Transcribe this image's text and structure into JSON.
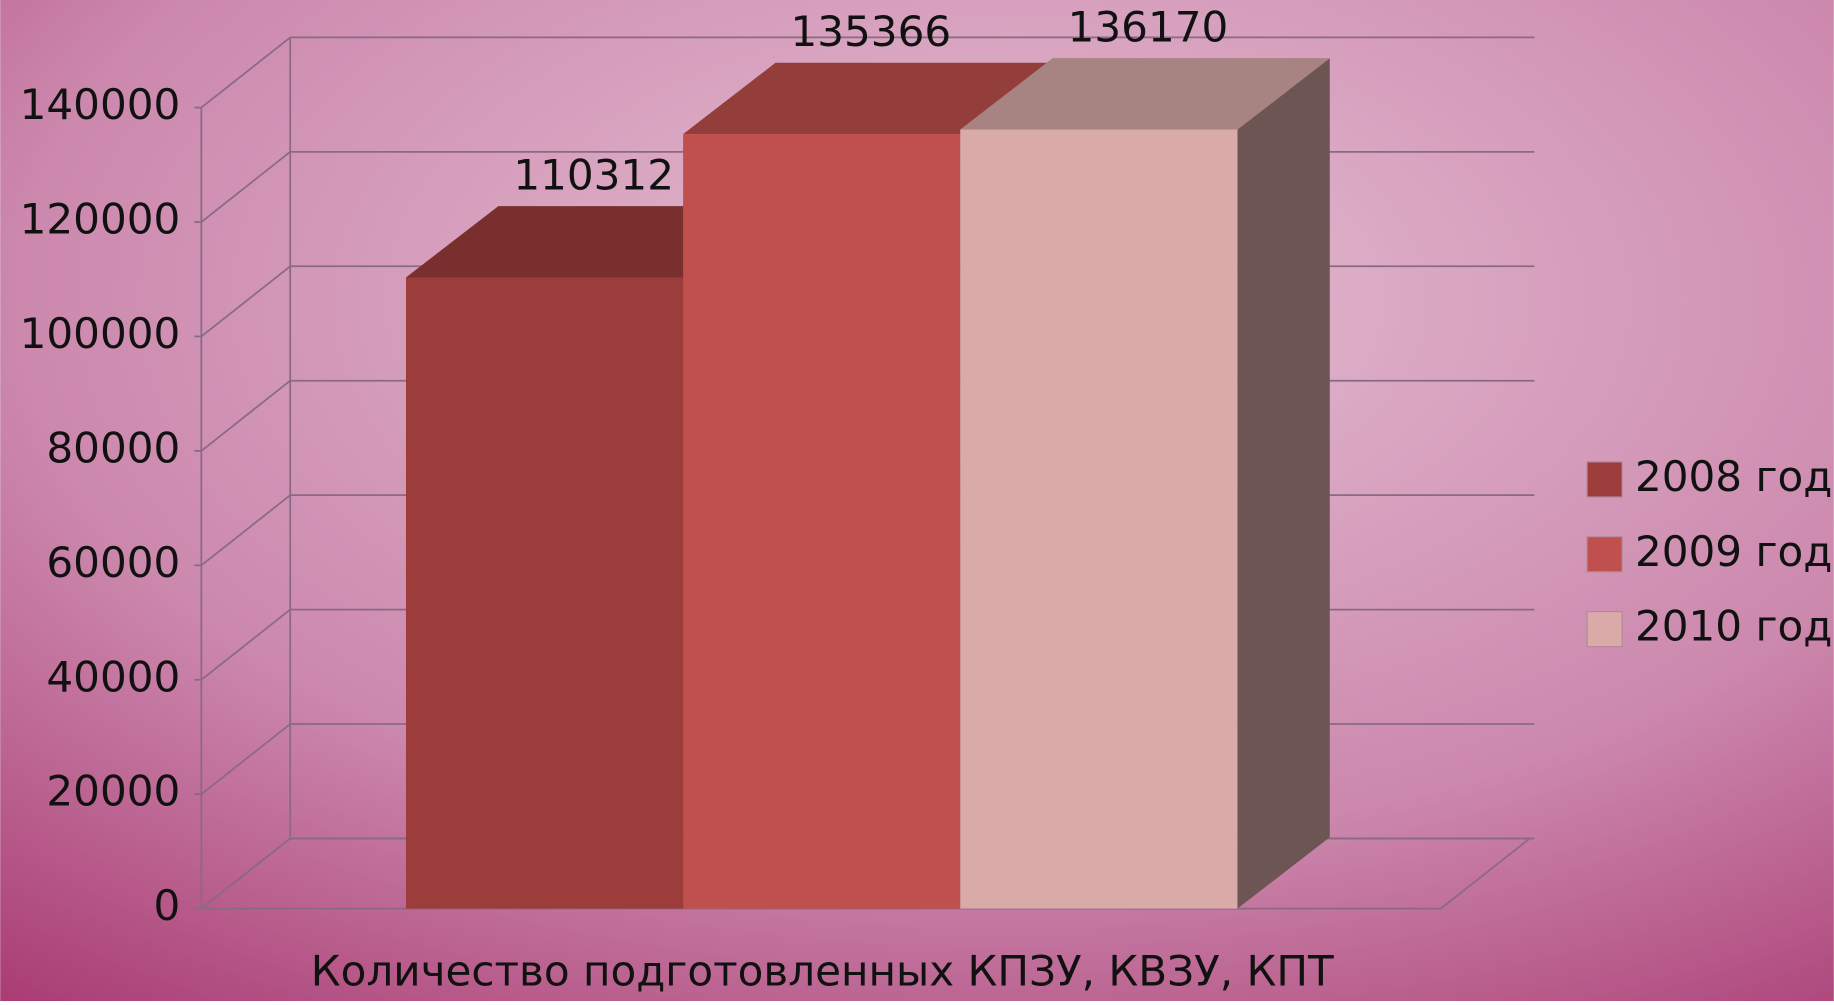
{
  "chart_data": {
    "type": "bar3d",
    "categories": [
      "Количество подготовленных КПЗУ, КВЗУ, КПТ"
    ],
    "series": [
      {
        "name": "2008 год",
        "color": "#9c3d3b",
        "values": [
          110312
        ]
      },
      {
        "name": "2009 год",
        "color": "#c0504d",
        "values": [
          135366
        ]
      },
      {
        "name": "2010 год",
        "color": "#d9aaa8",
        "values": [
          136170
        ]
      }
    ],
    "ylim": [
      0,
      140000
    ],
    "yticks": [
      0,
      20000,
      40000,
      60000,
      80000,
      100000,
      120000,
      140000
    ],
    "grid": true,
    "legend": "right"
  }
}
